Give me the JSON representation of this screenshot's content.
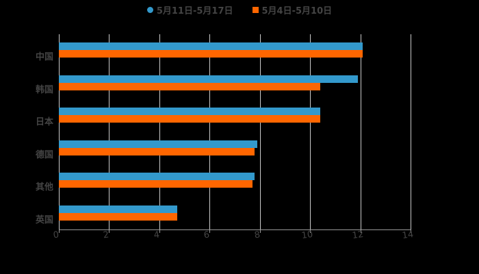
{
  "chart_data": {
    "type": "bar",
    "orientation": "horizontal",
    "title": "",
    "categories": [
      "中国",
      "韩国",
      "日本",
      "德国",
      "其他",
      "英国"
    ],
    "series": [
      {
        "name": "5月11日-5月17日",
        "color": "#3399CC",
        "marker": "circle",
        "values": [
          12.1,
          11.9,
          10.4,
          7.9,
          7.8,
          4.7
        ]
      },
      {
        "name": "5月4日-5月10日",
        "color": "#FF6600",
        "marker": "square",
        "values": [
          12.1,
          10.4,
          10.4,
          7.8,
          7.7,
          4.7
        ]
      }
    ],
    "xlabel": "",
    "ylabel": "",
    "xlim": [
      0,
      14
    ],
    "xticks": [
      "0",
      "2",
      "4",
      "6",
      "8",
      "10",
      "12",
      "14"
    ],
    "grid": true,
    "legend_position": "top"
  }
}
